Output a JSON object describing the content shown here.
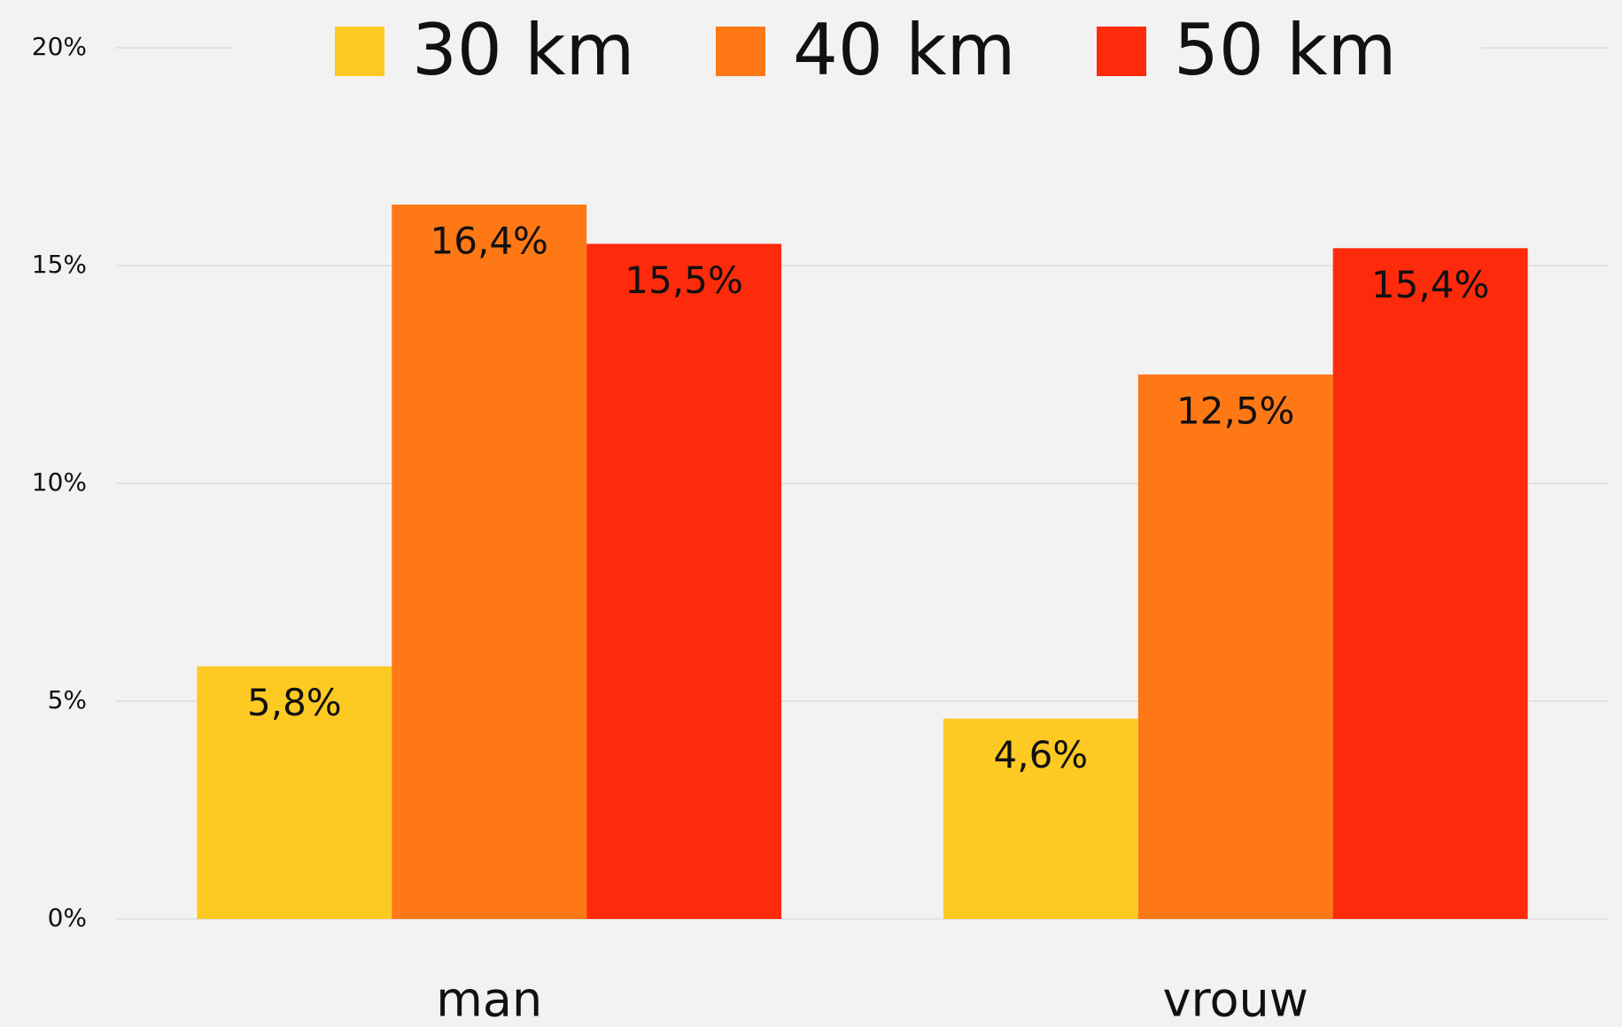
{
  "chart_data": {
    "type": "bar",
    "categories": [
      "man",
      "vrouw"
    ],
    "series": [
      {
        "name": "30 km",
        "color": "#fdc923",
        "values": [
          5.8,
          4.6
        ],
        "value_labels": [
          "5,8%",
          "4,6%"
        ]
      },
      {
        "name": "40 km",
        "color": "#fe7815",
        "values": [
          16.4,
          12.5
        ],
        "value_labels": [
          "16,4%",
          "12,5%"
        ]
      },
      {
        "name": "50 km",
        "color": "#fe2a0c",
        "values": [
          15.5,
          15.4
        ],
        "value_labels": [
          "15,5%",
          "15,4%"
        ]
      }
    ],
    "ylim": [
      0,
      20
    ],
    "yticks": [
      {
        "value": 0,
        "label": "0%"
      },
      {
        "value": 5,
        "label": "5%"
      },
      {
        "value": 10,
        "label": "10%"
      },
      {
        "value": 15,
        "label": "15%"
      },
      {
        "value": 20,
        "label": "20%"
      }
    ],
    "grid": true,
    "legend": "top"
  }
}
